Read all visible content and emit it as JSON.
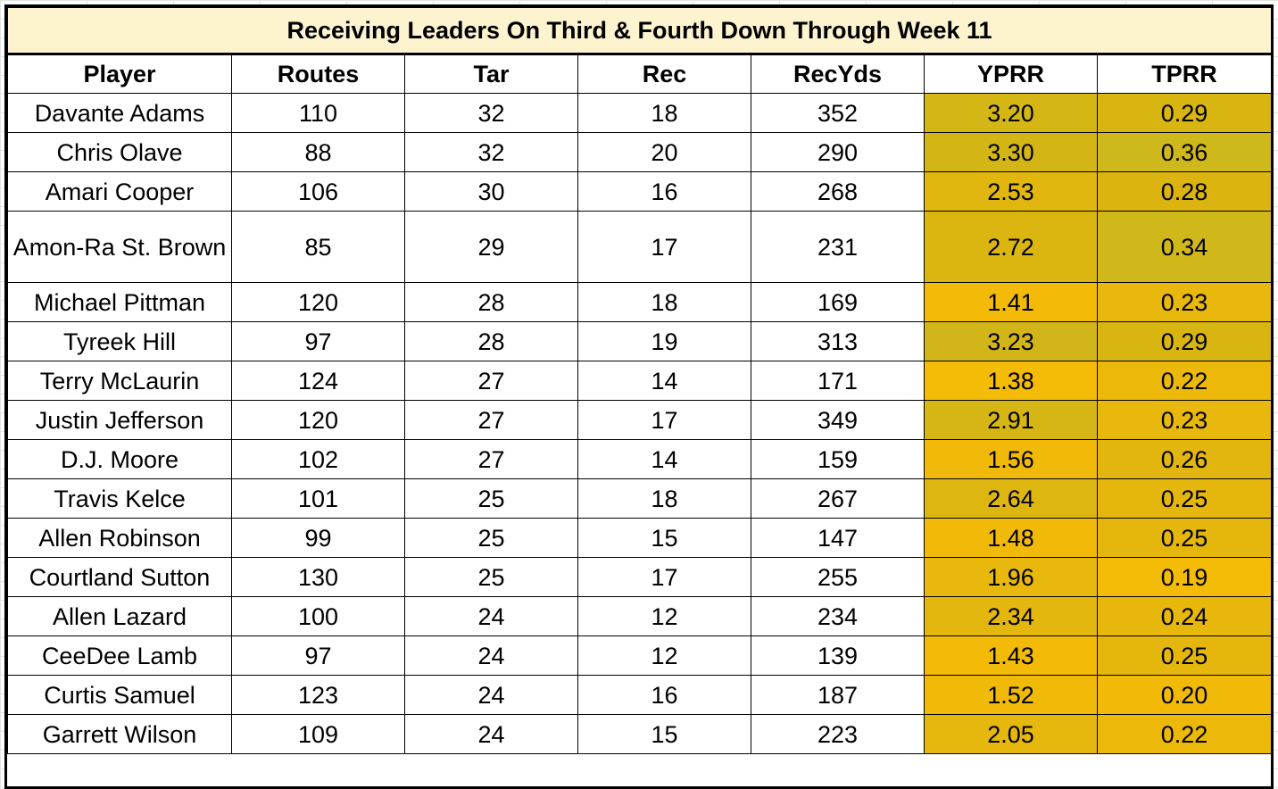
{
  "title": "Receiving Leaders On Third & Fourth Down Through Week 11",
  "columns": [
    "Player",
    "Routes",
    "Tar",
    "Rec",
    "RecYds",
    "YPRR",
    "TPRR"
  ],
  "rows": [
    {
      "player": "Davante Adams",
      "routes": "110",
      "tar": "32",
      "rec": "18",
      "recyds": "352",
      "yprr": "3.20",
      "tprr": "0.29",
      "yprr_color": "#d4b714",
      "tprr_color": "#d8b510"
    },
    {
      "player": "Chris Olave",
      "routes": "88",
      "tar": "32",
      "rec": "20",
      "recyds": "290",
      "yprr": "3.30",
      "tprr": "0.36",
      "yprr_color": "#d3b516",
      "tprr_color": "#cfb81b"
    },
    {
      "player": "Amari Cooper",
      "routes": "106",
      "tar": "30",
      "rec": "16",
      "recyds": "268",
      "yprr": "2.53",
      "tprr": "0.28",
      "yprr_color": "#e1b60f",
      "tprr_color": "#dcb40f"
    },
    {
      "player": "Amon-Ra St. Brown",
      "routes": "85",
      "tar": "29",
      "rec": "17",
      "recyds": "231",
      "yprr": "2.72",
      "tprr": "0.34",
      "yprr_color": "#dbb611",
      "tprr_color": "#d0b71a"
    },
    {
      "player": "Michael Pittman",
      "routes": "120",
      "tar": "28",
      "rec": "18",
      "recyds": "169",
      "yprr": "1.41",
      "tprr": "0.23",
      "yprr_color": "#f3ba08",
      "tprr_color": "#e9b80c"
    },
    {
      "player": "Tyreek Hill",
      "routes": "97",
      "tar": "28",
      "rec": "19",
      "recyds": "313",
      "yprr": "3.23",
      "tprr": "0.29",
      "yprr_color": "#d2b619",
      "tprr_color": "#d8b510"
    },
    {
      "player": "Terry McLaurin",
      "routes": "124",
      "tar": "27",
      "rec": "14",
      "recyds": "171",
      "yprr": "1.38",
      "tprr": "0.22",
      "yprr_color": "#f4bb07",
      "tprr_color": "#ecb90a"
    },
    {
      "player": "Justin Jefferson",
      "routes": "120",
      "tar": "27",
      "rec": "17",
      "recyds": "349",
      "yprr": "2.91",
      "tprr": "0.23",
      "yprr_color": "#d6b614",
      "tprr_color": "#e9b80c"
    },
    {
      "player": "D.J. Moore",
      "routes": "102",
      "tar": "27",
      "rec": "14",
      "recyds": "159",
      "yprr": "1.56",
      "tprr": "0.26",
      "yprr_color": "#f1ba08",
      "tprr_color": "#e2b60e"
    },
    {
      "player": "Travis Kelce",
      "routes": "101",
      "tar": "25",
      "rec": "18",
      "recyds": "267",
      "yprr": "2.64",
      "tprr": "0.25",
      "yprr_color": "#deb610",
      "tprr_color": "#e5b70d"
    },
    {
      "player": "Allen Robinson",
      "routes": "99",
      "tar": "25",
      "rec": "15",
      "recyds": "147",
      "yprr": "1.48",
      "tprr": "0.25",
      "yprr_color": "#f2ba08",
      "tprr_color": "#e5b70d"
    },
    {
      "player": "Courtland Sutton",
      "routes": "130",
      "tar": "25",
      "rec": "17",
      "recyds": "255",
      "yprr": "1.96",
      "tprr": "0.19",
      "yprr_color": "#e9b80c",
      "tprr_color": "#f4bb07"
    },
    {
      "player": "Allen Lazard",
      "routes": "100",
      "tar": "24",
      "rec": "12",
      "recyds": "234",
      "yprr": "2.34",
      "tprr": "0.24",
      "yprr_color": "#e3b70e",
      "tprr_color": "#e7b70c"
    },
    {
      "player": "CeeDee Lamb",
      "routes": "97",
      "tar": "24",
      "rec": "12",
      "recyds": "139",
      "yprr": "1.43",
      "tprr": "0.25",
      "yprr_color": "#f3ba08",
      "tprr_color": "#e5b70d"
    },
    {
      "player": "Curtis Samuel",
      "routes": "123",
      "tar": "24",
      "rec": "16",
      "recyds": "187",
      "yprr": "1.52",
      "tprr": "0.20",
      "yprr_color": "#f2ba08",
      "tprr_color": "#f1ba08"
    },
    {
      "player": "Garrett Wilson",
      "routes": "109",
      "tar": "24",
      "rec": "15",
      "recyds": "223",
      "yprr": "2.05",
      "tprr": "0.22",
      "yprr_color": "#e6b70d",
      "tprr_color": "#ecb90a"
    }
  ]
}
